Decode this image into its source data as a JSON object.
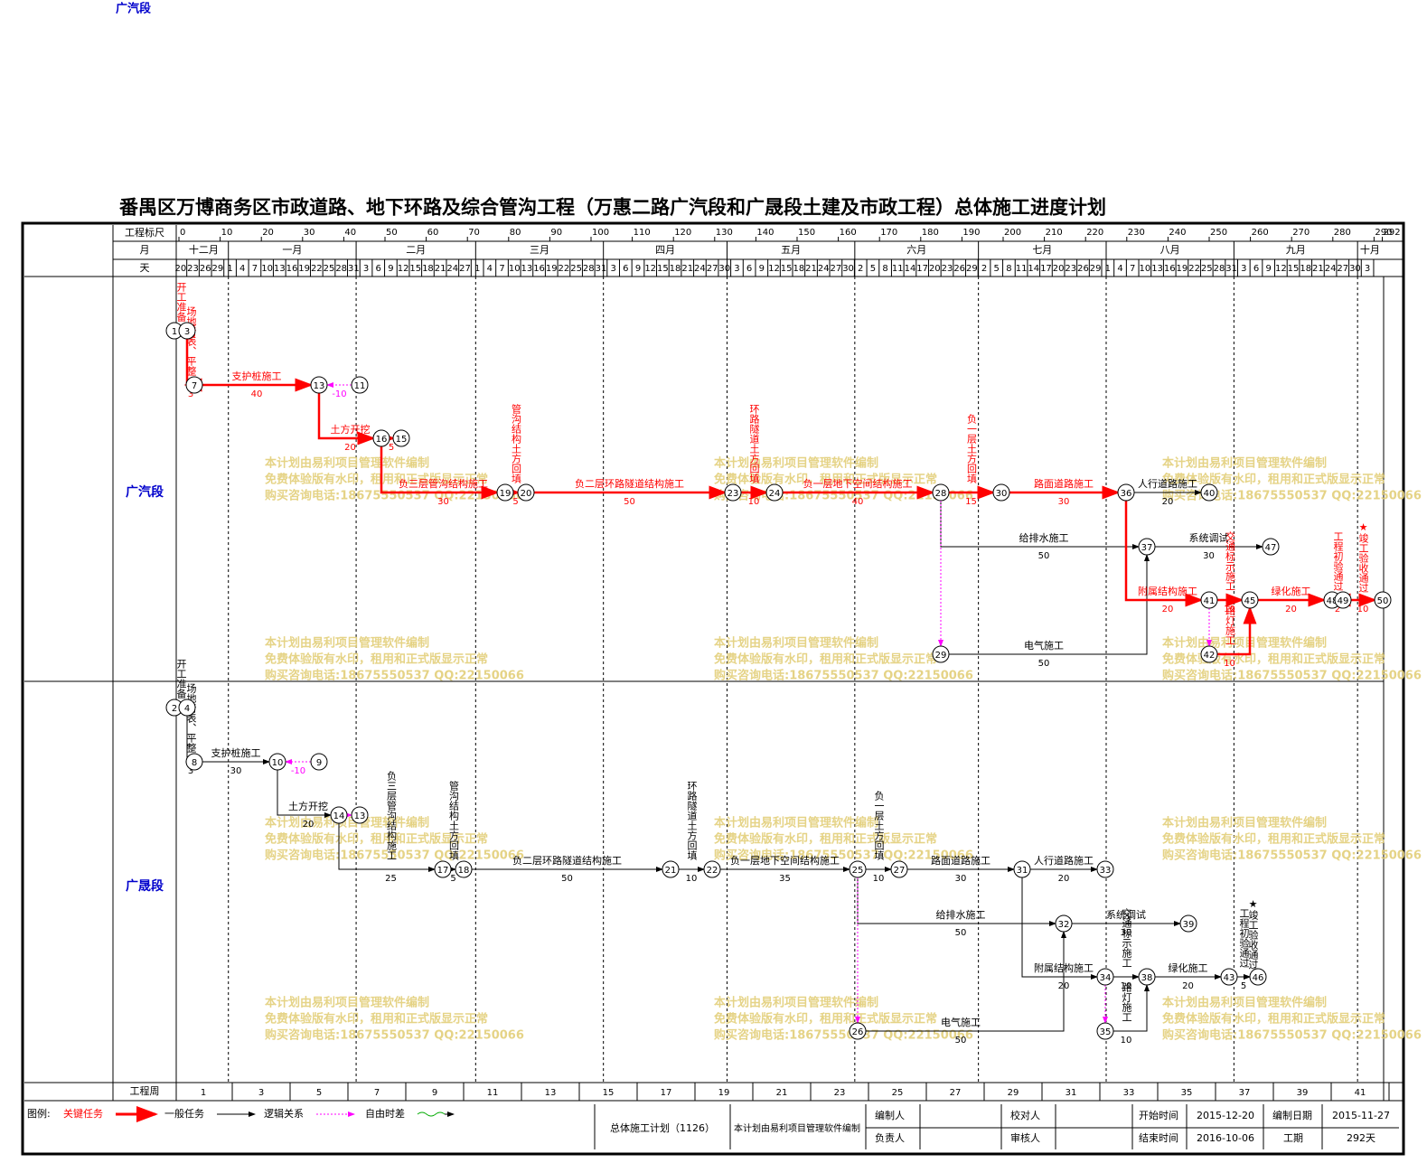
{
  "corner_label": "广汽段",
  "title": "番禺区万博商务区市政道路、地下环路及综合管沟工程（万惠二路广汽段和广晟段土建及市政工程）总体施工进度计划",
  "scale": {
    "label": "工程标尺",
    "ticks": [
      0,
      10,
      20,
      30,
      40,
      50,
      60,
      70,
      80,
      90,
      100,
      110,
      120,
      130,
      140,
      150,
      160,
      170,
      180,
      190,
      200,
      210,
      220,
      230,
      240,
      250,
      260,
      270,
      280,
      290,
      292
    ]
  },
  "months": {
    "label": "月",
    "names": [
      "十二月",
      "一月",
      "二月",
      "三月",
      "四月",
      "五月",
      "六月",
      "七月",
      "八月",
      "九月",
      "十月"
    ]
  },
  "days": {
    "label": "天",
    "values": [
      20,
      23,
      26,
      29,
      1,
      4,
      7,
      10,
      13,
      16,
      19,
      22,
      25,
      28,
      31,
      3,
      6,
      9,
      12,
      15,
      18,
      21,
      24,
      27,
      1,
      4,
      7,
      10,
      13,
      16,
      19,
      22,
      25,
      28,
      31,
      3,
      6,
      9,
      12,
      15,
      18,
      21,
      24,
      27,
      30,
      3,
      6,
      9,
      12,
      15,
      18,
      21,
      24,
      27,
      30,
      2,
      5,
      8,
      11,
      14,
      17,
      20,
      23,
      26,
      29,
      2,
      5,
      8,
      11,
      14,
      17,
      20,
      23,
      26,
      29,
      1,
      4,
      7,
      10,
      13,
      16,
      19,
      22,
      25,
      28,
      31,
      3,
      6,
      9,
      12,
      15,
      18,
      21,
      24,
      27,
      30,
      3
    ]
  },
  "weeks": {
    "label": "工程周",
    "values": [
      1,
      3,
      5,
      7,
      9,
      11,
      13,
      15,
      17,
      19,
      21,
      23,
      25,
      27,
      29,
      31,
      33,
      35,
      37,
      39,
      41
    ]
  },
  "sections": [
    {
      "name": "广汽段",
      "nodes": [
        "1",
        "3",
        "7",
        "13",
        "11",
        "16",
        "15",
        "19",
        "20",
        "23",
        "24",
        "28",
        "30",
        "36",
        "40",
        "37",
        "47",
        "29",
        "41",
        "42",
        "45",
        "48",
        "49",
        "50"
      ],
      "tasks": [
        {
          "name": "开工准备",
          "kind": "critical"
        },
        {
          "name": "场地清表、平整",
          "duration": 3,
          "kind": "critical"
        },
        {
          "name": "支护桩施工",
          "duration": 40,
          "kind": "critical"
        },
        {
          "duration": -10,
          "kind": "free"
        },
        {
          "name": "土方开挖",
          "duration": 20,
          "kind": "critical"
        },
        {
          "duration": 5,
          "kind": "critical"
        },
        {
          "name": "负三层管沟结构施工",
          "duration": 30,
          "kind": "critical"
        },
        {
          "name": "管沟结构土方回填",
          "duration": 5,
          "kind": "critical"
        },
        {
          "name": "负二层环路隧道结构施工",
          "duration": 50,
          "kind": "critical"
        },
        {
          "name": "环路隧道土方回填",
          "duration": 10,
          "kind": "critical"
        },
        {
          "name": "负一层地下空间结构施工",
          "duration": 40,
          "kind": "critical"
        },
        {
          "name": "负一层土方回填",
          "duration": 15,
          "kind": "critical"
        },
        {
          "name": "路面道路施工",
          "duration": 30,
          "kind": "critical"
        },
        {
          "name": "人行道路施工",
          "duration": 20,
          "kind": "normal"
        },
        {
          "name": "给排水施工",
          "duration": 50,
          "kind": "normal"
        },
        {
          "name": "系统调试",
          "duration": 30,
          "kind": "normal"
        },
        {
          "kind": "free"
        },
        {
          "name": "电气施工",
          "duration": 50,
          "kind": "normal"
        },
        {
          "name": "附属结构施工",
          "duration": 20,
          "kind": "critical"
        },
        {
          "name": "交通标示施工",
          "duration": 10,
          "kind": "critical"
        },
        {
          "kind": "free"
        },
        {
          "name": "路灯施工",
          "duration": 10,
          "kind": "critical"
        },
        {
          "name": "绿化施工",
          "duration": 20,
          "kind": "critical"
        },
        {
          "name": "工程初验通过",
          "duration": 2,
          "kind": "critical"
        },
        {
          "name": "★竣工验收通过",
          "duration": 10,
          "kind": "critical"
        }
      ]
    },
    {
      "name": "广晟段",
      "nodes": [
        "2",
        "4",
        "8",
        "10",
        "9",
        "14",
        "13",
        "17",
        "18",
        "21",
        "22",
        "25",
        "27",
        "31",
        "33",
        "32",
        "39",
        "26",
        "34",
        "35",
        "38",
        "43",
        "46"
      ],
      "tasks": [
        {
          "name": "开工准备",
          "kind": "normal"
        },
        {
          "name": "场地清表、平整",
          "duration": 3,
          "kind": "normal"
        },
        {
          "name": "支护桩施工",
          "duration": 30,
          "kind": "normal"
        },
        {
          "duration": -10,
          "kind": "free"
        },
        {
          "name": "土方开挖",
          "duration": 20,
          "kind": "normal"
        },
        {
          "kind": "free"
        },
        {
          "name": "负三层管沟结构施工",
          "duration": 25,
          "kind": "normal"
        },
        {
          "name": "管沟结构土方回填",
          "duration": 5,
          "kind": "normal"
        },
        {
          "name": "负二层环路隧道结构施工",
          "duration": 50,
          "kind": "normal"
        },
        {
          "name": "环路隧道土方回填",
          "duration": 10,
          "kind": "normal"
        },
        {
          "name": "负一层地下空间结构施工",
          "duration": 35,
          "kind": "normal"
        },
        {
          "name": "负一层土方回填",
          "duration": 10,
          "kind": "normal"
        },
        {
          "name": "路面道路施工",
          "duration": 30,
          "kind": "normal"
        },
        {
          "name": "人行道路施工",
          "duration": 20,
          "kind": "normal"
        },
        {
          "name": "给排水施工",
          "duration": 50,
          "kind": "normal"
        },
        {
          "name": "系统调试",
          "duration": 30,
          "kind": "normal"
        },
        {
          "kind": "free"
        },
        {
          "name": "电气施工",
          "duration": 50,
          "kind": "normal"
        },
        {
          "name": "附属结构施工",
          "duration": 20,
          "kind": "normal"
        },
        {
          "name": "交通标示施工",
          "duration": 10,
          "kind": "normal"
        },
        {
          "kind": "free"
        },
        {
          "name": "路灯施工",
          "duration": 10,
          "kind": "normal"
        },
        {
          "name": "绿化施工",
          "duration": 20,
          "kind": "normal"
        },
        {
          "name": "工程初验通过",
          "kind": "normal"
        },
        {
          "name": "★竣工验收通过",
          "duration": 5,
          "kind": "normal"
        }
      ]
    }
  ],
  "watermark": [
    "本计划由易利项目管理软件编制",
    "免费体验版有水印，租用和正式版显示正常",
    "购买咨询电话:18675550537 QQ:22150066"
  ],
  "legend": {
    "label": "图例:",
    "items": [
      "关键任务",
      "一般任务",
      "逻辑关系",
      "自由时差"
    ]
  },
  "footer": {
    "plan": "总体施工计划（1126）",
    "software": "本计划由易利项目管理软件编制",
    "editor": "编制人",
    "owner": "负责人",
    "checker": "校对人",
    "reviewer": "审核人",
    "start_label": "开始时间",
    "start": "2015-12-20",
    "end_label": "结束时间",
    "end": "2016-10-06",
    "date_label": "编制日期",
    "date": "2015-11-27",
    "duration_label": "工期",
    "duration": "292天"
  }
}
